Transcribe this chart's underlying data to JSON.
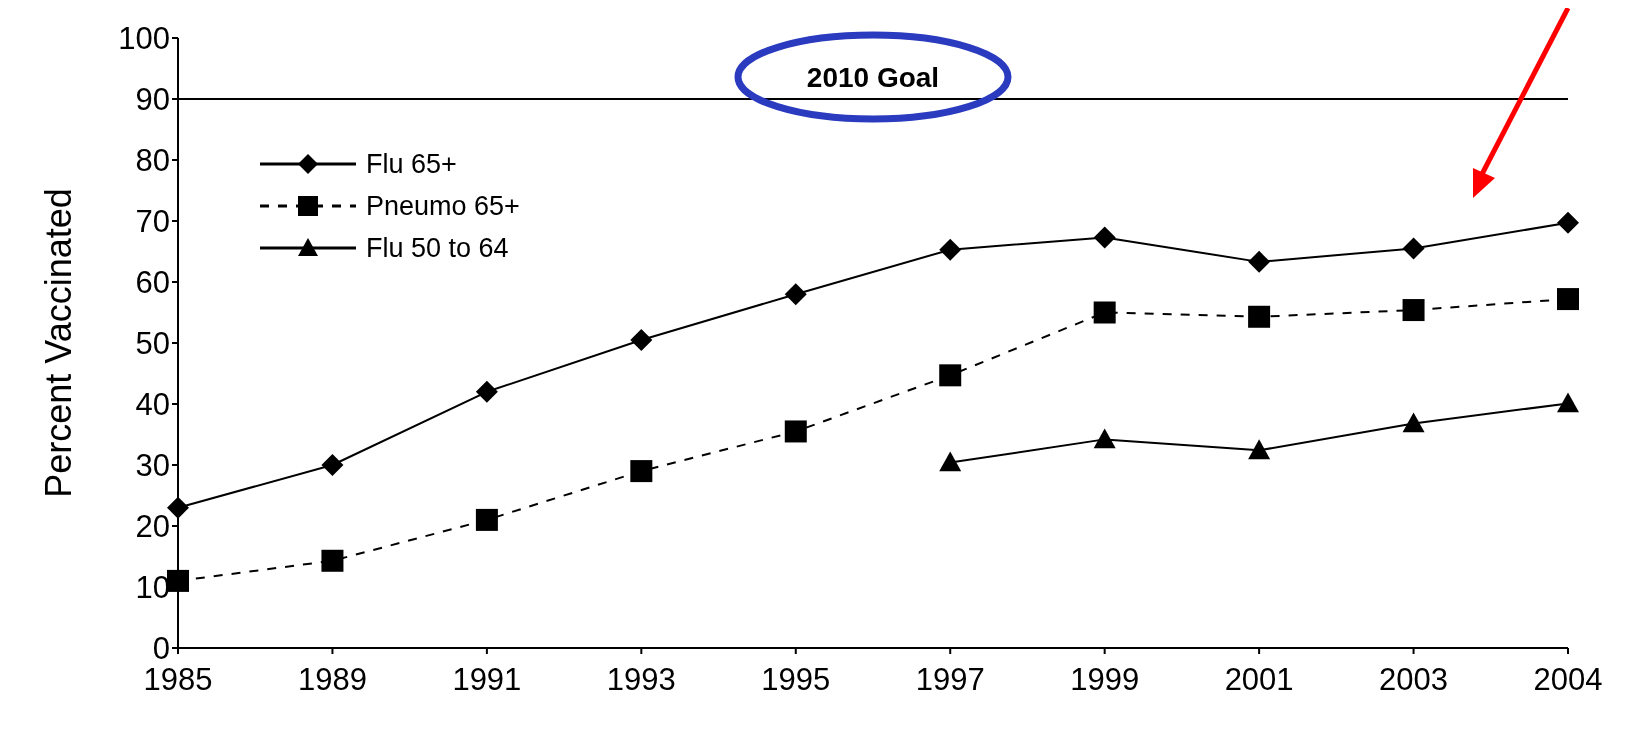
{
  "chart_data": {
    "type": "line",
    "ylabel": "Percent Vaccinated",
    "categories": [
      "1985",
      "1989",
      "1991",
      "1993",
      "1995",
      "1997",
      "1999",
      "2001",
      "2003",
      "2004"
    ],
    "series": [
      {
        "name": "Flu 65+",
        "color": "#000000",
        "marker": "diamond",
        "line_style": "solid",
        "values": [
          23,
          30,
          42,
          50.5,
          58,
          65.3,
          67.3,
          63.3,
          65.5,
          69.7
        ]
      },
      {
        "name": "Pneumo 65+",
        "color": "#000000",
        "marker": "square",
        "line_style": "dashed",
        "values": [
          11,
          14.3,
          21,
          29,
          35.5,
          44.7,
          55,
          54.3,
          55.4,
          57.2
        ]
      },
      {
        "name": "Flu 50 to 64",
        "color": "#000000",
        "marker": "triangle",
        "line_style": "solid",
        "values": [
          null,
          null,
          null,
          null,
          null,
          30.4,
          34.2,
          32.4,
          36.8,
          40.1
        ]
      }
    ],
    "ylim": [
      0,
      100
    ],
    "yticks": [
      0,
      10,
      20,
      30,
      40,
      50,
      60,
      70,
      80,
      90,
      100
    ],
    "ref_lines": [
      {
        "axis": "y",
        "value": 90,
        "label": "2010 Goal",
        "color": "#000000"
      }
    ],
    "legend": "top left",
    "grid": false
  }
}
